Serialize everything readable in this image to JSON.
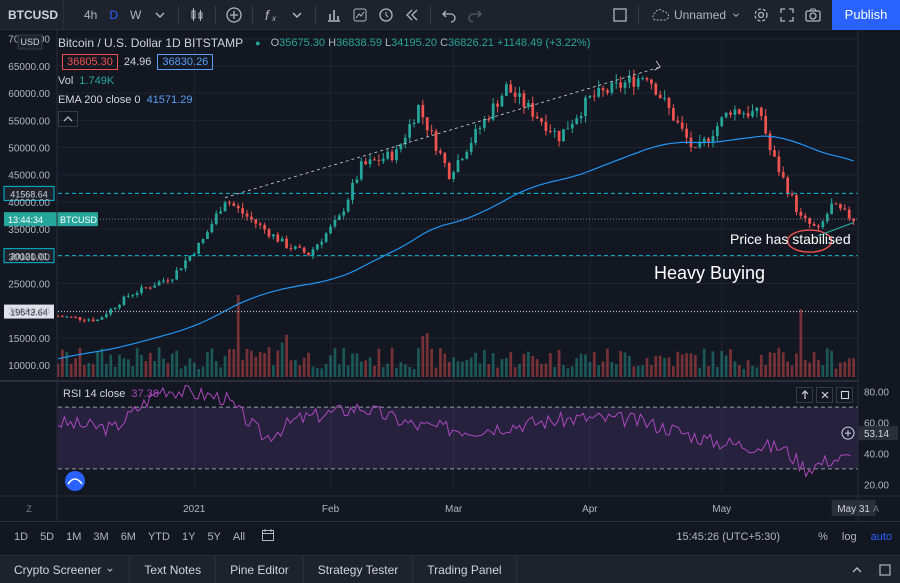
{
  "toolbar": {
    "symbol": "BTCUSD",
    "timeframes": [
      "4h",
      "D",
      "W"
    ],
    "active_timeframe": "D",
    "layout_name": "Unnamed",
    "publish_label": "Publish"
  },
  "legend": {
    "title": "Bitcoin / U.S. Dollar  1D  BITSTAMP",
    "o_label": "O",
    "o": "35675.30",
    "h_label": "H",
    "h": "36838.59",
    "l_label": "L",
    "l": "34195.20",
    "c_label": "C",
    "c": "36826.21",
    "change": "+1148.49 (+3.22%)",
    "sell_price": "36805.30",
    "spread": "24.96",
    "buy_price": "36830.26",
    "vol_label": "Vol",
    "vol_value": "1.749K",
    "ema_label": "EMA 200 close 0",
    "ema_value": "41571.29"
  },
  "rsi_legend": {
    "label": "RSI 14 close",
    "value": "37.38"
  },
  "colors": {
    "up": "#26a69a",
    "down": "#ef5350",
    "ema": "#2196f3",
    "rsi": "#ab47bc",
    "level": "#00bcd4",
    "accent": "#2962ff"
  },
  "chart_data": {
    "type": "candlestick",
    "title": "Bitcoin / U.S. Dollar",
    "currency_label": "USD",
    "x_tick_labels": [
      "2021",
      "Feb",
      "Mar",
      "Apr",
      "May",
      "May 31"
    ],
    "y_tick_labels": [
      "70000.00",
      "65000.00",
      "60000.00",
      "55000.00",
      "50000.00",
      "45000.00",
      "40000.00",
      "35000.00",
      "30000.00",
      "25000.00",
      "20000.00",
      "15000.00",
      "10000.00"
    ],
    "price_range": [
      8000,
      70500
    ],
    "price_series_approx": [
      {
        "date": "2020-12-01",
        "close": 19000
      },
      {
        "date": "2020-12-10",
        "close": 18300
      },
      {
        "date": "2020-12-17",
        "close": 22800
      },
      {
        "date": "2020-12-27",
        "close": 26300
      },
      {
        "date": "2021-01-03",
        "close": 33000
      },
      {
        "date": "2021-01-08",
        "close": 40500
      },
      {
        "date": "2021-01-13",
        "close": 37300
      },
      {
        "date": "2021-01-22",
        "close": 32000
      },
      {
        "date": "2021-01-27",
        "close": 30400
      },
      {
        "date": "2021-02-03",
        "close": 37000
      },
      {
        "date": "2021-02-08",
        "close": 46500
      },
      {
        "date": "2021-02-16",
        "close": 49000
      },
      {
        "date": "2021-02-21",
        "close": 57500
      },
      {
        "date": "2021-02-28",
        "close": 45200
      },
      {
        "date": "2021-03-13",
        "close": 61000
      },
      {
        "date": "2021-03-25",
        "close": 52000
      },
      {
        "date": "2021-04-01",
        "close": 59000
      },
      {
        "date": "2021-04-14",
        "close": 63500
      },
      {
        "date": "2021-04-25",
        "close": 49000
      },
      {
        "date": "2021-05-03",
        "close": 57000
      },
      {
        "date": "2021-05-10",
        "close": 56000
      },
      {
        "date": "2021-05-12",
        "close": 49500
      },
      {
        "date": "2021-05-19",
        "close": 37000
      },
      {
        "date": "2021-05-23",
        "close": 34700
      },
      {
        "date": "2021-05-26",
        "close": 39300
      },
      {
        "date": "2021-05-31",
        "close": 36826
      }
    ],
    "ema200": {
      "name": "EMA 200 close 0",
      "last_value": 41571.29
    },
    "horizontal_levels": [
      {
        "price": 41568.64,
        "label": "41568.64",
        "style": "dashed"
      },
      {
        "price": 30121.01,
        "label": "30121.01",
        "style": "dashed"
      },
      {
        "price": 19843.64,
        "label": "19843.64",
        "style": "dotted"
      }
    ],
    "current_price": {
      "price": 36826.21,
      "label": "BTCUSD",
      "countdown": "13:44:34"
    },
    "annotations": [
      {
        "text": "Price has stabilised",
        "type": "note"
      },
      {
        "text": "Heavy Buying",
        "type": "note"
      }
    ],
    "rsi": {
      "label": "RSI 14 close",
      "last_value": 37.38,
      "marker_label": "53.14",
      "y_tick_labels": [
        "80.00",
        "60.00",
        "40.00",
        "20.00"
      ],
      "upper_band": 70,
      "lower_band": 30
    }
  },
  "range_bar": {
    "items": [
      "1D",
      "5D",
      "1M",
      "3M",
      "6M",
      "YTD",
      "1Y",
      "5Y",
      "All"
    ],
    "timezone": "15:45:26 (UTC+5:30)",
    "percent": "%",
    "log": "log",
    "auto": "auto"
  },
  "panel_bar": {
    "items": [
      "Crypto Screener",
      "Text Notes",
      "Pine Editor",
      "Strategy Tester",
      "Trading Panel"
    ]
  }
}
